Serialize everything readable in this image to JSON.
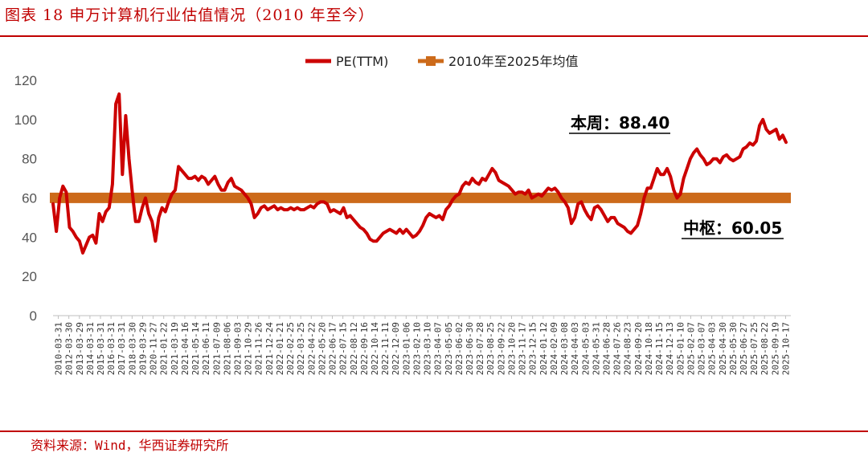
{
  "figure": {
    "title": "图表 18 申万计算机行业估值情况（2010 年至今）",
    "source": "资料来源：Wind，华西证券研究所"
  },
  "colors": {
    "pe": "#cc0000",
    "mean": "#cc6a1a",
    "accent": "#c00000"
  },
  "chart_data": {
    "type": "line",
    "title": "",
    "xlabel": "",
    "ylabel": "",
    "ylim": [
      0,
      120
    ],
    "y_ticks": [
      0,
      20,
      40,
      60,
      80,
      100,
      120
    ],
    "grid": false,
    "legend_position": "top",
    "x_tick_labels": [
      "2010-03-31",
      "2012-03-30",
      "2013-03-29",
      "2014-03-31",
      "2015-03-31",
      "2016-03-31",
      "2017-03-31",
      "2018-03-30",
      "2019-03-29",
      "2020-11-27",
      "2021-01-22",
      "2021-03-19",
      "2021-04-16",
      "2021-05-14",
      "2021-06-11",
      "2021-07-09",
      "2021-08-06",
      "2021-09-03",
      "2021-10-29",
      "2021-11-26",
      "2021-12-24",
      "2022-01-21",
      "2022-02-25",
      "2022-03-25",
      "2022-04-22",
      "2022-05-20",
      "2022-06-17",
      "2022-07-15",
      "2022-08-12",
      "2022-09-16",
      "2022-10-14",
      "2022-11-11",
      "2022-12-09",
      "2023-01-06",
      "2023-02-10",
      "2023-03-10",
      "2023-04-07",
      "2023-05-05",
      "2023-06-02",
      "2023-06-30",
      "2023-07-28",
      "2023-08-25",
      "2023-09-22",
      "2023-10-20",
      "2023-11-17",
      "2023-12-15",
      "2024-01-12",
      "2024-02-09",
      "2024-03-08",
      "2024-04-03",
      "2024-05-03",
      "2024-05-31",
      "2024-06-28",
      "2024-07-26",
      "2024-08-23",
      "2024-09-20",
      "2024-10-18",
      "2024-11-15",
      "2024-12-13",
      "2025-01-10",
      "2025-02-07",
      "2025-03-07",
      "2025-04-03",
      "2025-04-30",
      "2025-05-30",
      "2025-06-27",
      "2025-07-25",
      "2025-08-22",
      "2025-09-19",
      "2025-10-17"
    ],
    "series": [
      {
        "name": "PE(TTM)",
        "type": "line",
        "values": [
          57,
          43,
          60,
          66,
          63,
          45,
          43,
          40,
          38,
          32,
          36,
          40,
          41,
          37,
          52,
          48,
          53,
          55,
          67,
          108,
          113,
          72,
          102,
          80,
          63,
          48,
          48,
          55,
          60,
          52,
          48,
          38,
          50,
          55,
          53,
          58,
          62,
          64,
          76,
          74,
          72,
          70,
          70,
          71,
          69,
          71,
          70,
          67,
          69,
          71,
          67,
          64,
          64,
          68,
          70,
          66,
          65,
          64,
          62,
          60,
          57,
          50,
          52,
          55,
          56,
          54,
          55,
          56,
          54,
          55,
          54,
          54,
          55,
          54,
          55,
          54,
          54,
          55,
          56,
          55,
          57,
          58,
          58,
          57,
          53,
          54,
          53,
          52,
          55,
          50,
          51,
          49,
          47,
          45,
          44,
          42,
          39,
          38,
          38,
          40,
          42,
          43,
          44,
          43,
          42,
          44,
          42,
          44,
          42,
          40,
          41,
          43,
          46,
          50,
          52,
          51,
          50,
          51,
          49,
          54,
          56,
          59,
          61,
          62,
          66,
          68,
          67,
          70,
          68,
          67,
          70,
          69,
          72,
          75,
          73,
          69,
          68,
          67,
          66,
          64,
          62,
          63,
          63,
          62,
          64,
          60,
          61,
          62,
          61,
          63,
          65,
          64,
          65,
          63,
          60,
          58,
          55,
          47,
          50,
          57,
          58,
          54,
          51,
          49,
          55,
          56,
          54,
          51,
          48,
          50,
          50,
          47,
          46,
          45,
          43,
          42,
          44,
          46,
          52,
          60,
          65,
          65,
          70,
          75,
          72,
          72,
          75,
          71,
          64,
          60,
          62,
          70,
          75,
          80,
          83,
          85,
          82,
          80,
          77,
          78,
          80,
          80,
          78,
          81,
          82,
          80,
          79,
          80,
          81,
          85,
          86,
          88,
          87,
          89,
          97,
          100,
          95,
          93,
          94,
          95,
          90,
          92,
          88.4
        ]
      },
      {
        "name": "2010年至2025年均值",
        "type": "line",
        "values": [
          60.05,
          60.05
        ]
      }
    ],
    "annotations": [
      {
        "text": "本周：88.40",
        "value": 88.4
      },
      {
        "text": "中枢：60.05",
        "value": 60.05
      }
    ]
  }
}
